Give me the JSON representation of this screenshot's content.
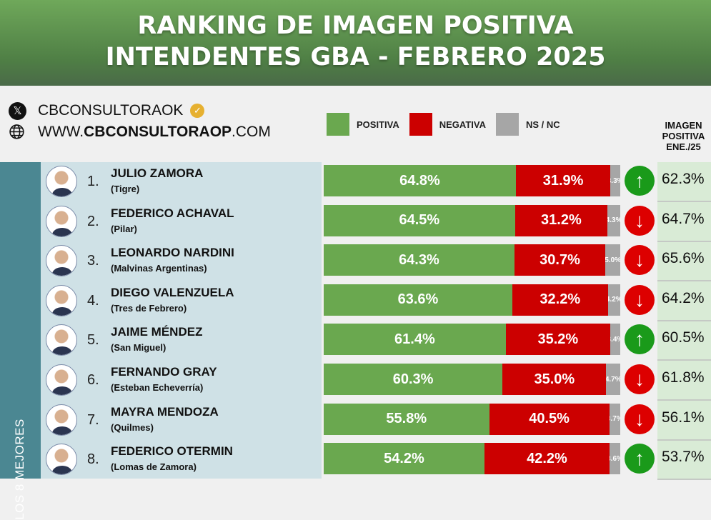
{
  "title": {
    "line1": "RANKING DE IMAGEN POSITIVA",
    "line2": "INTENDENTES GBA - FEBRERO 2025"
  },
  "social": {
    "handle": "CBCONSULTORAOK",
    "web_prefix": "WWW.",
    "web_bold": "CBCONSULTORAOP",
    "web_suffix": ".COM"
  },
  "legend": {
    "positiva": "POSITIVA",
    "negativa": "NEGATIVA",
    "nsnc": "NS / NC"
  },
  "colors": {
    "positiva": "#6aa84f",
    "negativa": "#cc0000",
    "nsnc": "#a6a6a6",
    "up": "#1a9a1a",
    "down": "#dd0000"
  },
  "prev_header": {
    "line1": "IMAGEN",
    "line2": "POSITIVA",
    "line3": "ENE./25"
  },
  "band_label": "LOS 8 MEJORES",
  "chart_data": {
    "type": "bar",
    "stacked": true,
    "orientation": "horizontal",
    "categories": [
      "JULIO ZAMORA",
      "FEDERICO ACHAVAL",
      "LEONARDO NARDINI",
      "DIEGO VALENZUELA",
      "JAIME MÉNDEZ",
      "FERNANDO GRAY",
      "MAYRA MENDOZA",
      "FEDERICO OTERMIN"
    ],
    "series": [
      {
        "name": "POSITIVA",
        "values": [
          64.8,
          64.5,
          64.3,
          63.6,
          61.4,
          60.3,
          55.8,
          54.2
        ]
      },
      {
        "name": "NEGATIVA",
        "values": [
          31.9,
          31.2,
          30.7,
          32.2,
          35.2,
          35.0,
          40.5,
          42.2
        ]
      },
      {
        "name": "NS / NC",
        "values": [
          3.3,
          4.3,
          5.0,
          4.2,
          3.4,
          4.7,
          3.7,
          3.6
        ]
      }
    ],
    "xlim": [
      0,
      100
    ]
  },
  "rows": [
    {
      "rank": "1.",
      "district": "(Tigre)",
      "trend": "up",
      "prev": "62.3%"
    },
    {
      "rank": "2.",
      "district": "(Pilar)",
      "trend": "down",
      "prev": "64.7%"
    },
    {
      "rank": "3.",
      "district": "(Malvinas Argentinas)",
      "trend": "down",
      "prev": "65.6%"
    },
    {
      "rank": "4.",
      "district": "(Tres de Febrero)",
      "trend": "down",
      "prev": "64.2%"
    },
    {
      "rank": "5.",
      "district": "(San Miguel)",
      "trend": "up",
      "prev": "60.5%"
    },
    {
      "rank": "6.",
      "district": "(Esteban Echeverría)",
      "trend": "down",
      "prev": "61.8%"
    },
    {
      "rank": "7.",
      "district": "(Quilmes)",
      "trend": "down",
      "prev": "56.1%"
    },
    {
      "rank": "8.",
      "district": "(Lomas de Zamora)",
      "trend": "up",
      "prev": "53.7%"
    }
  ]
}
